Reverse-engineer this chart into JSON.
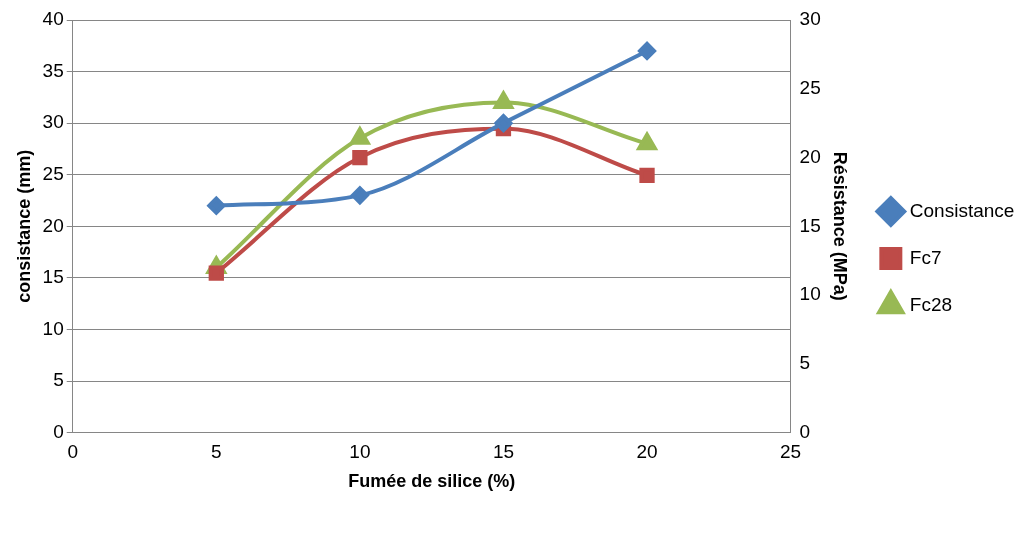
{
  "chart_data": {
    "type": "line",
    "xlabel": "Fumée de silice (%)",
    "ylabel": "consistance (mm)",
    "y2label": "Résistance (MPa)",
    "x": [
      5,
      10,
      15,
      20
    ],
    "series": [
      {
        "name": "Consistance",
        "color": "#4a7ebb",
        "values": [
          22,
          23,
          30,
          37
        ],
        "marker": "diamond"
      },
      {
        "name": "Fc7",
        "color": "#be4b48",
        "values": [
          11.6,
          20,
          22.1,
          18.7
        ],
        "axis": "y2",
        "marker": "square"
      },
      {
        "name": "Fc28",
        "color": "#98b954",
        "values": [
          12,
          21.4,
          24,
          21
        ],
        "axis": "y2",
        "marker": "triangle"
      }
    ],
    "xlim": [
      0,
      25
    ],
    "xticks": [
      0,
      5,
      10,
      15,
      20,
      25
    ],
    "ylim": [
      0,
      40
    ],
    "yticks": [
      0,
      5,
      10,
      15,
      20,
      25,
      30,
      35,
      40
    ],
    "y2lim": [
      0,
      30
    ],
    "y2ticks": [
      0,
      5,
      10,
      15,
      20,
      25,
      30
    ],
    "grid": "y",
    "legend": "right"
  }
}
